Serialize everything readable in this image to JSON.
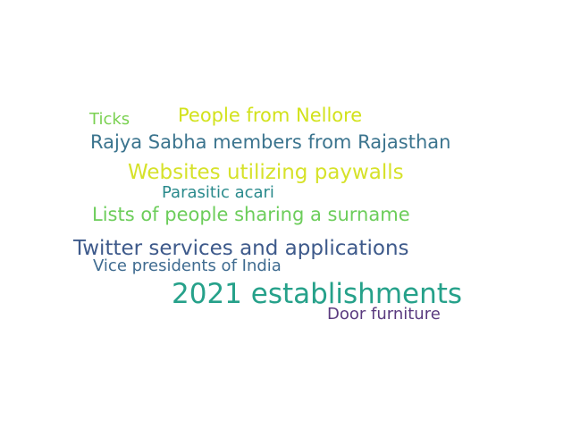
{
  "word_cloud": {
    "words": [
      {
        "text": "Ticks",
        "color": "#7ad151"
      },
      {
        "text": "People from Nellore",
        "color": "#d2e21b"
      },
      {
        "text": "Rajya Sabha members from Rajasthan",
        "color": "#3b748e"
      },
      {
        "text": "Websites utilizing paywalls",
        "color": "#d6e22a"
      },
      {
        "text": "Parasitic acari",
        "color": "#2a8a8c"
      },
      {
        "text": "Lists of people sharing a surname",
        "color": "#6ccd5a"
      },
      {
        "text": "Twitter services and applications",
        "color": "#3e5a8b"
      },
      {
        "text": "Vice presidents of India",
        "color": "#3f6b90"
      },
      {
        "text": "2021 establishments",
        "color": "#26a18a"
      },
      {
        "text": "Door furniture",
        "color": "#5a3a7f"
      }
    ]
  }
}
